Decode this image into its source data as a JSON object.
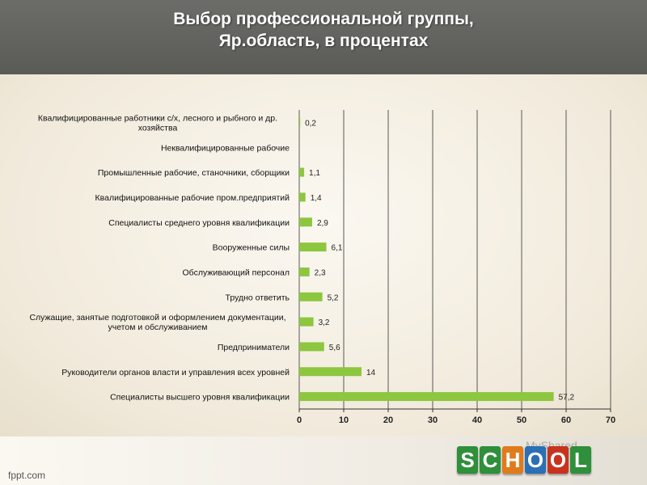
{
  "slide": {
    "title_line1": "Выбор профессиональной группы,",
    "title_line2": "Яр.область, в процентах",
    "footer_site": "fppt.com",
    "logo_letters": [
      "S",
      "C",
      "H",
      "O",
      "O",
      "L"
    ],
    "logo_watermark": "MyShared"
  },
  "colors": {
    "bar": "#8dc63f",
    "header": "#63635f",
    "grid": "#333333"
  },
  "chart_data": {
    "type": "bar",
    "orientation": "horizontal",
    "categories": [
      [
        "Квалифицированные  работники с/х, лесного и рыбного и др.",
        "хозяйства"
      ],
      [
        "Неквалифицированные  рабочие"
      ],
      [
        "Промышленные  рабочие, станочники, сборщики"
      ],
      [
        "Квалифицированные  рабочие пром.предприятий"
      ],
      [
        "Специалисты  среднего уровня квалификации"
      ],
      [
        "Вооруженные силы"
      ],
      [
        "Обслуживающий  персонал"
      ],
      [
        "Трудно ответить"
      ],
      [
        "Служащие,  занятые  подготовкой и оформлением документации,",
        "учетом и  обслуживанием"
      ],
      [
        "Предприниматели"
      ],
      [
        "Руководители органов власти и управления всех уровней"
      ],
      [
        "Специалисты  высшего уровня квалификации"
      ]
    ],
    "values": [
      0.2,
      null,
      1.1,
      1.4,
      2.9,
      6.1,
      2.3,
      5.2,
      3.2,
      5.6,
      14,
      57.2
    ],
    "labels": [
      "0,2",
      "",
      "1,1",
      "1,4",
      "2,9",
      "6,1",
      "2,3",
      "5,2",
      "3,2",
      "5,6",
      "14",
      "57,2"
    ],
    "xlim": [
      0,
      70
    ],
    "xticks": [
      0,
      10,
      20,
      30,
      40,
      50,
      60,
      70
    ],
    "grid": true
  }
}
